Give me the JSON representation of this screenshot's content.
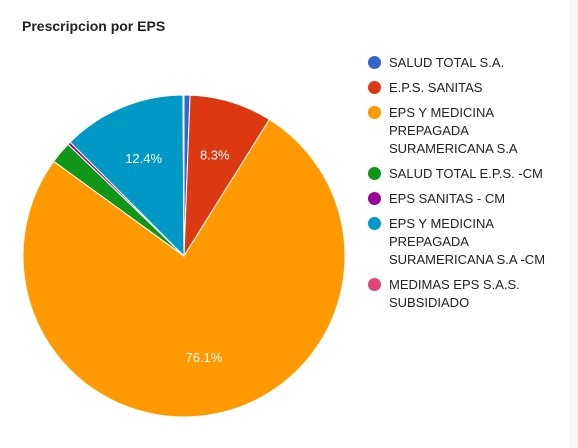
{
  "chart_data": {
    "type": "pie",
    "title": "Prescripcion por EPS",
    "legend_position": "right",
    "slices": [
      {
        "label": "SALUD TOTAL S.A.",
        "value": 0.6,
        "color": "#3366cc",
        "label_text": ""
      },
      {
        "label": "E.P.S. SANITAS",
        "value": 8.3,
        "color": "#dc3912",
        "label_text": "8.3%"
      },
      {
        "label": "EPS Y MEDICINA PREPAGADA SURAMERICANA S.A",
        "value": 76.1,
        "color": "#ff9900",
        "label_text": "76.1%"
      },
      {
        "label": "SALUD TOTAL E.P.S. -CM",
        "value": 2.2,
        "color": "#109618",
        "label_text": ""
      },
      {
        "label": "EPS SANITAS - CM",
        "value": 0.3,
        "color": "#990099",
        "label_text": ""
      },
      {
        "label": "EPS Y MEDICINA PREPAGADA SURAMERICANA S.A -CM",
        "value": 12.4,
        "color": "#0099c6",
        "label_text": "12.4%"
      },
      {
        "label": "MEDIMAS EPS S.A.S. SUBSIDIADO",
        "value": 0.1,
        "color": "#dd4477",
        "label_text": ""
      }
    ]
  }
}
